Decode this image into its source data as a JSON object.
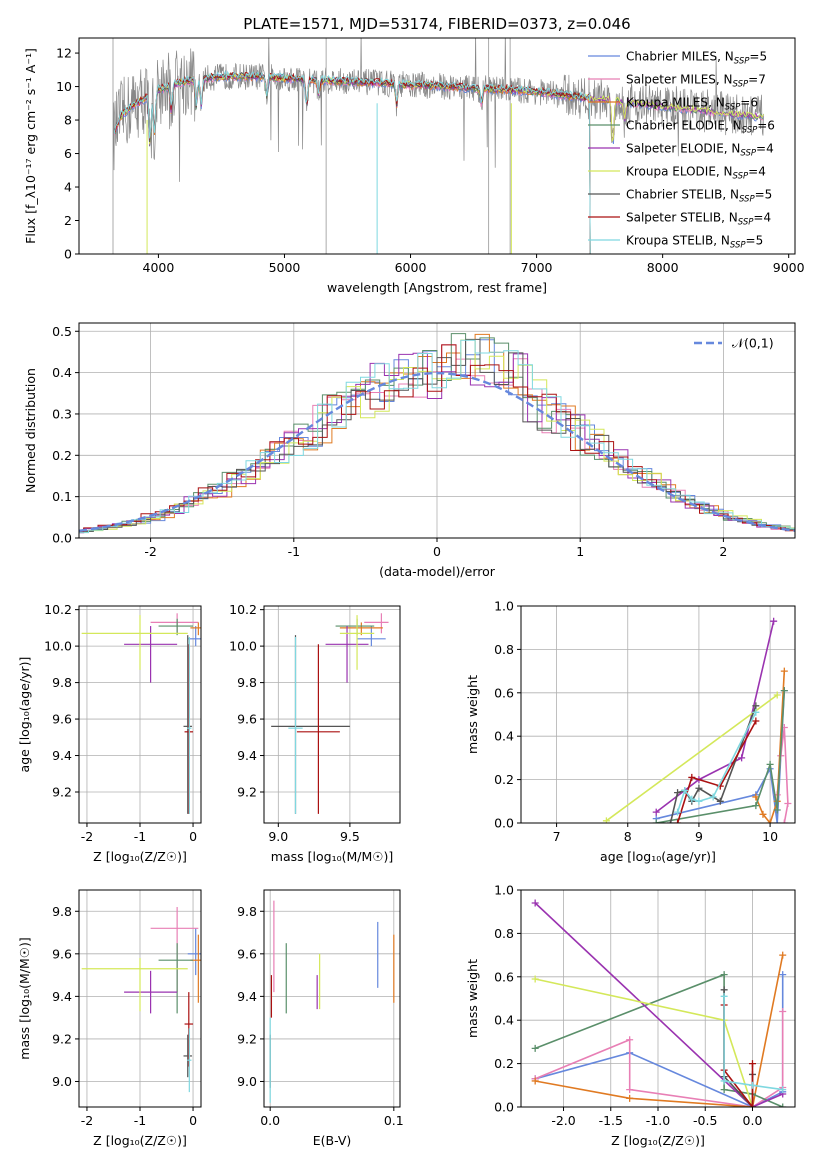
{
  "figure_title": "PLATE=1571, MJD=53174, FIBERID=0373, z=0.046",
  "colors": {
    "Chabrier MILES": "#6688dd",
    "Salpeter MILES": "#e87fb5",
    "Kroupa MILES": "#e07a22",
    "Chabrier ELODIE": "#5a8f6a",
    "Salpeter ELODIE": "#9a33b0",
    "Kroupa ELODIE": "#d4e85a",
    "Chabrier STELIB": "#555555",
    "Salpeter STELIB": "#aa1111",
    "Kroupa STELIB": "#7fd8e0",
    "data": "#888888",
    "normal": "#6688dd"
  },
  "chart_data": [
    {
      "id": "spectrum",
      "type": "line",
      "title": "PLATE=1571, MJD=53174, FIBERID=0373, z=0.046",
      "xlabel": "wavelength [Angstrom, rest frame]",
      "ylabel": "Flux [f_λ10⁻¹⁷ erg cm⁻² s⁻¹ A⁻¹]",
      "xlim": [
        3370,
        9050
      ],
      "ylim": [
        0,
        12.9
      ],
      "xticks": [
        4000,
        5000,
        6000,
        7000,
        8000,
        9000
      ],
      "yticks": [
        0,
        2,
        4,
        6,
        8,
        10,
        12
      ],
      "legend_position": "top-right",
      "legend": [
        {
          "name": "Chabrier MILES",
          "nssp": "5"
        },
        {
          "name": "Salpeter MILES",
          "nssp": "7"
        },
        {
          "name": "Kroupa MILES",
          "nssp": "6"
        },
        {
          "name": "Chabrier ELODIE",
          "nssp": "6"
        },
        {
          "name": "Salpeter ELODIE",
          "nssp": "4"
        },
        {
          "name": "Kroupa ELODIE",
          "nssp": "4"
        },
        {
          "name": "Chabrier STELIB",
          "nssp": "5"
        },
        {
          "name": "Salpeter STELIB",
          "nssp": "4"
        },
        {
          "name": "Kroupa STELIB",
          "nssp": "5"
        }
      ],
      "continuum": {
        "x": [
          3640,
          3700,
          3800,
          3900,
          4000,
          4200,
          4500,
          4800,
          5000,
          5200,
          5500,
          5800,
          6000,
          6300,
          6500,
          6800,
          7000,
          7200,
          7400,
          7600,
          7800,
          8000,
          8200,
          8500,
          8800
        ],
        "y": [
          7.0,
          8.2,
          8.9,
          9.3,
          9.8,
          10.3,
          10.6,
          10.6,
          10.5,
          10.4,
          10.3,
          10.2,
          10.1,
          10.0,
          9.9,
          9.8,
          9.7,
          9.5,
          9.3,
          9.2,
          9.0,
          8.8,
          8.7,
          8.4,
          8.2
        ]
      }
    },
    {
      "id": "residuals",
      "type": "bar",
      "xlabel": "(data-model)/error",
      "ylabel": "Normed distribution",
      "xlim": [
        -2.5,
        2.5
      ],
      "ylim": [
        0,
        0.52
      ],
      "xticks": [
        -2,
        -1,
        0,
        1,
        2
      ],
      "yticks": [
        0.0,
        0.1,
        0.2,
        0.3,
        0.4,
        0.5
      ],
      "legend_position": "top-right",
      "legend": [
        {
          "name": "𝒩(0,1)"
        }
      ],
      "normal_mu": 0,
      "normal_sigma": 1
    },
    {
      "id": "age-vs-Z",
      "type": "scatter",
      "xlabel": "Z [log₁₀(Z/Z☉)]",
      "ylabel": "age [log₁₀(age/yr)]",
      "xlim": [
        -2.15,
        0.15
      ],
      "ylim": [
        9.03,
        10.22
      ],
      "xticks": [
        -2,
        -1,
        0
      ],
      "yticks": [
        9.2,
        9.4,
        9.6,
        9.8,
        10.0,
        10.2
      ],
      "points": [
        {
          "model": "Chabrier MILES",
          "x": 0.05,
          "y": 10.04,
          "xerr": [
            0.15,
            0.1
          ],
          "yerr": [
            0.04,
            0.07
          ]
        },
        {
          "model": "Salpeter MILES",
          "x": -0.3,
          "y": 10.13,
          "xerr": [
            0.5,
            0.4
          ],
          "yerr": [
            0.06,
            0.05
          ]
        },
        {
          "model": "Kroupa MILES",
          "x": 0.1,
          "y": 10.1,
          "xerr": [
            0.15,
            0.05
          ],
          "yerr": [
            0.04,
            0.03
          ]
        },
        {
          "model": "Chabrier ELODIE",
          "x": -0.3,
          "y": 10.11,
          "xerr": [
            0.35,
            0.3
          ],
          "yerr": [
            0.05,
            0.04
          ]
        },
        {
          "model": "Salpeter ELODIE",
          "x": -0.8,
          "y": 10.01,
          "xerr": [
            0.5,
            0.5
          ],
          "yerr": [
            0.21,
            0.1
          ]
        },
        {
          "model": "Kroupa ELODIE",
          "x": -1.0,
          "y": 10.07,
          "xerr": [
            1.1,
            0.9
          ],
          "yerr": [
            0.2,
            0.1
          ]
        },
        {
          "model": "Chabrier STELIB",
          "x": -0.1,
          "y": 9.56,
          "xerr": [
            0.08,
            0.08
          ],
          "yerr": [
            0.48,
            0.5
          ]
        },
        {
          "model": "Salpeter STELIB",
          "x": -0.08,
          "y": 9.53,
          "xerr": [
            0.08,
            0.08
          ],
          "yerr": [
            0.45,
            0.48
          ]
        },
        {
          "model": "Kroupa STELIB",
          "x": -0.07,
          "y": 9.55,
          "xerr": [
            0.04,
            0.04
          ],
          "yerr": [
            0.47,
            0.5
          ]
        }
      ]
    },
    {
      "id": "age-vs-mass",
      "type": "scatter",
      "xlabel": "mass [log₁₀(M/M☉)]",
      "ylabel": "",
      "xlim": [
        8.9,
        9.85
      ],
      "ylim": [
        9.03,
        10.22
      ],
      "xticks": [
        9.0,
        9.5
      ],
      "yticks": [
        9.2,
        9.4,
        9.6,
        9.8,
        10.0,
        10.2
      ],
      "points": [
        {
          "model": "Chabrier MILES",
          "x": 9.65,
          "y": 10.04,
          "xerr": [
            0.1,
            0.1
          ],
          "yerr": [
            0.04,
            0.07
          ]
        },
        {
          "model": "Salpeter MILES",
          "x": 9.72,
          "y": 10.13,
          "xerr": [
            0.12,
            0.05
          ],
          "yerr": [
            0.06,
            0.05
          ]
        },
        {
          "model": "Kroupa MILES",
          "x": 9.58,
          "y": 10.1,
          "xerr": [
            0.15,
            0.15
          ],
          "yerr": [
            0.04,
            0.03
          ]
        },
        {
          "model": "Chabrier ELODIE",
          "x": 9.55,
          "y": 10.11,
          "xerr": [
            0.15,
            0.12
          ],
          "yerr": [
            0.05,
            0.04
          ]
        },
        {
          "model": "Salpeter ELODIE",
          "x": 9.48,
          "y": 10.01,
          "xerr": [
            0.15,
            0.15
          ],
          "yerr": [
            0.21,
            0.1
          ]
        },
        {
          "model": "Kroupa ELODIE",
          "x": 9.55,
          "y": 10.07,
          "xerr": [
            0.12,
            0.12
          ],
          "yerr": [
            0.2,
            0.1
          ]
        },
        {
          "model": "Chabrier STELIB",
          "x": 9.12,
          "y": 9.56,
          "xerr": [
            0.17,
            0.38
          ],
          "yerr": [
            0.48,
            0.5
          ]
        },
        {
          "model": "Salpeter STELIB",
          "x": 9.28,
          "y": 9.53,
          "xerr": [
            0.15,
            0.15
          ],
          "yerr": [
            0.45,
            0.48
          ]
        },
        {
          "model": "Kroupa STELIB",
          "x": 9.12,
          "y": 9.55,
          "xerr": [
            0.05,
            0.05
          ],
          "yerr": [
            0.47,
            0.5
          ]
        }
      ]
    },
    {
      "id": "weight-vs-age",
      "type": "line",
      "xlabel": "age [log₁₀(age/yr)]",
      "ylabel": "mass weight",
      "xlim": [
        6.5,
        10.35
      ],
      "ylim": [
        0,
        1.0
      ],
      "xticks": [
        7,
        8,
        9,
        10
      ],
      "yticks": [
        0.0,
        0.2,
        0.4,
        0.6,
        0.8,
        1.0
      ],
      "series": [
        {
          "model": "Chabrier MILES",
          "x": [
            8.4,
            9.8,
            10.0,
            10.1,
            10.2
          ],
          "y": [
            0.02,
            0.13,
            0.25,
            0.0,
            0.61
          ]
        },
        {
          "model": "Salpeter MILES",
          "x": [
            10.1,
            10.15,
            10.2,
            10.25,
            10.2
          ],
          "y": [
            0.13,
            0.31,
            0.44,
            0.09,
            0.0
          ]
        },
        {
          "model": "Kroupa MILES",
          "x": [
            9.8,
            9.9,
            10.0,
            10.1,
            10.2
          ],
          "y": [
            0.12,
            0.04,
            0.0,
            0.1,
            0.7
          ]
        },
        {
          "model": "Chabrier ELODIE",
          "x": [
            8.4,
            9.8,
            10.0,
            10.1,
            10.2
          ],
          "y": [
            0.0,
            0.08,
            0.27,
            0.06,
            0.61
          ]
        },
        {
          "model": "Salpeter ELODIE",
          "x": [
            8.4,
            9.0,
            9.6,
            10.05
          ],
          "y": [
            0.05,
            0.2,
            0.3,
            0.93
          ]
        },
        {
          "model": "Kroupa ELODIE",
          "x": [
            7.7,
            10.1
          ],
          "y": [
            0.01,
            0.59
          ]
        },
        {
          "model": "Chabrier STELIB",
          "x": [
            8.6,
            8.7,
            8.8,
            8.9,
            9.0,
            9.3,
            9.8
          ],
          "y": [
            0.0,
            0.14,
            0.15,
            0.1,
            0.16,
            0.1,
            0.54
          ]
        },
        {
          "model": "Salpeter STELIB",
          "x": [
            8.7,
            8.9,
            9.3,
            9.8
          ],
          "y": [
            0.0,
            0.21,
            0.17,
            0.47
          ]
        },
        {
          "model": "Kroupa STELIB",
          "x": [
            8.7,
            8.8,
            8.9,
            9.0,
            9.2,
            9.8
          ],
          "y": [
            0.05,
            0.15,
            0.11,
            0.1,
            0.12,
            0.51
          ]
        }
      ]
    },
    {
      "id": "mass-vs-Z",
      "type": "scatter",
      "xlabel": "Z [log₁₀(Z/Z☉)]",
      "ylabel": "mass [log₁₀(M/M☉)]",
      "xlim": [
        -2.15,
        0.15
      ],
      "ylim": [
        8.88,
        9.9
      ],
      "xticks": [
        -2,
        -1,
        0
      ],
      "yticks": [
        9.0,
        9.2,
        9.4,
        9.6,
        9.8
      ],
      "points": [
        {
          "model": "Chabrier MILES",
          "x": 0.05,
          "y": 9.6,
          "xerr": [
            0.15,
            0.1
          ],
          "yerr": [
            0.1,
            0.12
          ]
        },
        {
          "model": "Salpeter MILES",
          "x": -0.3,
          "y": 9.72,
          "xerr": [
            0.5,
            0.4
          ],
          "yerr": [
            0.3,
            0.1
          ]
        },
        {
          "model": "Kroupa MILES",
          "x": 0.1,
          "y": 9.57,
          "xerr": [
            0.15,
            0.05
          ],
          "yerr": [
            0.2,
            0.12
          ]
        },
        {
          "model": "Chabrier ELODIE",
          "x": -0.3,
          "y": 9.57,
          "xerr": [
            0.35,
            0.3
          ],
          "yerr": [
            0.25,
            0.08
          ]
        },
        {
          "model": "Salpeter ELODIE",
          "x": -0.8,
          "y": 9.42,
          "xerr": [
            0.5,
            0.5
          ],
          "yerr": [
            0.1,
            0.1
          ]
        },
        {
          "model": "Kroupa ELODIE",
          "x": -1.0,
          "y": 9.53,
          "xerr": [
            1.1,
            0.9
          ],
          "yerr": [
            0.2,
            0.05
          ]
        },
        {
          "model": "Chabrier STELIB",
          "x": -0.1,
          "y": 9.12,
          "xerr": [
            0.08,
            0.08
          ],
          "yerr": [
            0.1,
            0.1
          ]
        },
        {
          "model": "Salpeter STELIB",
          "x": -0.08,
          "y": 9.27,
          "xerr": [
            0.08,
            0.08
          ],
          "yerr": [
            0.2,
            0.15
          ]
        },
        {
          "model": "Kroupa STELIB",
          "x": -0.07,
          "y": 9.1,
          "xerr": [
            0.04,
            0.04
          ],
          "yerr": [
            0.15,
            0.15
          ]
        }
      ]
    },
    {
      "id": "mass-vs-EBV",
      "type": "scatter",
      "xlabel": "E(B-V)",
      "ylabel": "",
      "xlim": [
        -0.005,
        0.105
      ],
      "ylim": [
        8.88,
        9.9
      ],
      "xticks": [
        0.0,
        0.1
      ],
      "yticks": [
        9.0,
        9.2,
        9.4,
        9.6,
        9.8
      ],
      "points": [
        {
          "model": "Chabrier MILES",
          "x": 0.087,
          "y": 9.6,
          "yerr": [
            0.16,
            0.15
          ]
        },
        {
          "model": "Salpeter MILES",
          "x": 0.003,
          "y": 9.72,
          "yerr": [
            0.3,
            0.13
          ]
        },
        {
          "model": "Kroupa MILES",
          "x": 0.1,
          "y": 9.57,
          "yerr": [
            0.2,
            0.12
          ]
        },
        {
          "model": "Chabrier ELODIE",
          "x": 0.013,
          "y": 9.57,
          "yerr": [
            0.25,
            0.08
          ]
        },
        {
          "model": "Salpeter ELODIE",
          "x": 0.038,
          "y": 9.42,
          "yerr": [
            0.08,
            0.08
          ]
        },
        {
          "model": "Kroupa ELODIE",
          "x": 0.04,
          "y": 9.5,
          "yerr": [
            0.16,
            0.1
          ]
        },
        {
          "model": "Chabrier STELIB",
          "x": 0.0,
          "y": 9.12,
          "yerr": [
            0.15,
            0.1
          ]
        },
        {
          "model": "Salpeter STELIB",
          "x": 0.001,
          "y": 9.4,
          "yerr": [
            0.1,
            0.1
          ]
        },
        {
          "model": "Kroupa STELIB",
          "x": 0.0,
          "y": 9.1,
          "yerr": [
            0.2,
            0.2
          ]
        }
      ]
    },
    {
      "id": "weight-vs-Z",
      "type": "line",
      "xlabel": "Z [log₁₀(Z/Z☉)]",
      "ylabel": "mass weight",
      "xlim": [
        -2.45,
        0.45
      ],
      "ylim": [
        0,
        1.0
      ],
      "xticks": [
        -2.0,
        -1.5,
        -1.0,
        -0.5,
        0.0
      ],
      "yticks": [
        0.0,
        0.2,
        0.4,
        0.6,
        0.8,
        1.0
      ],
      "series": [
        {
          "model": "Chabrier MILES",
          "x": [
            -2.3,
            -1.3,
            0.0,
            0.32,
            0.32
          ],
          "y": [
            0.13,
            0.25,
            0.0,
            0.07,
            0.61
          ]
        },
        {
          "model": "Salpeter MILES",
          "x": [
            -2.3,
            -1.3,
            -1.3,
            0.0,
            0.32,
            0.32
          ],
          "y": [
            0.13,
            0.31,
            0.08,
            0.0,
            0.09,
            0.44
          ]
        },
        {
          "model": "Kroupa MILES",
          "x": [
            -2.3,
            -1.3,
            0.0,
            0.32
          ],
          "y": [
            0.12,
            0.04,
            0.0,
            0.7
          ]
        },
        {
          "model": "Chabrier ELODIE",
          "x": [
            -2.3,
            -0.3,
            -0.3,
            0.0,
            0.32
          ],
          "y": [
            0.27,
            0.61,
            0.08,
            0.06,
            0.0
          ]
        },
        {
          "model": "Salpeter ELODIE",
          "x": [
            -2.3,
            0.0,
            0.32
          ],
          "y": [
            0.94,
            0.0,
            0.06
          ]
        },
        {
          "model": "Kroupa ELODIE",
          "x": [
            -2.3,
            -0.3,
            0.0
          ],
          "y": [
            0.59,
            0.4,
            0.0
          ]
        },
        {
          "model": "Chabrier STELIB",
          "x": [
            -0.3,
            -0.3,
            0.0,
            0.0
          ],
          "y": [
            0.54,
            0.14,
            0.0,
            0.15
          ]
        },
        {
          "model": "Salpeter STELIB",
          "x": [
            -0.3,
            -0.3,
            0.0,
            0.0
          ],
          "y": [
            0.47,
            0.17,
            0.0,
            0.2
          ]
        },
        {
          "model": "Kroupa STELIB",
          "x": [
            -0.3,
            -0.3,
            0.0,
            0.32
          ],
          "y": [
            0.51,
            0.12,
            0.1,
            0.08
          ]
        }
      ]
    }
  ]
}
